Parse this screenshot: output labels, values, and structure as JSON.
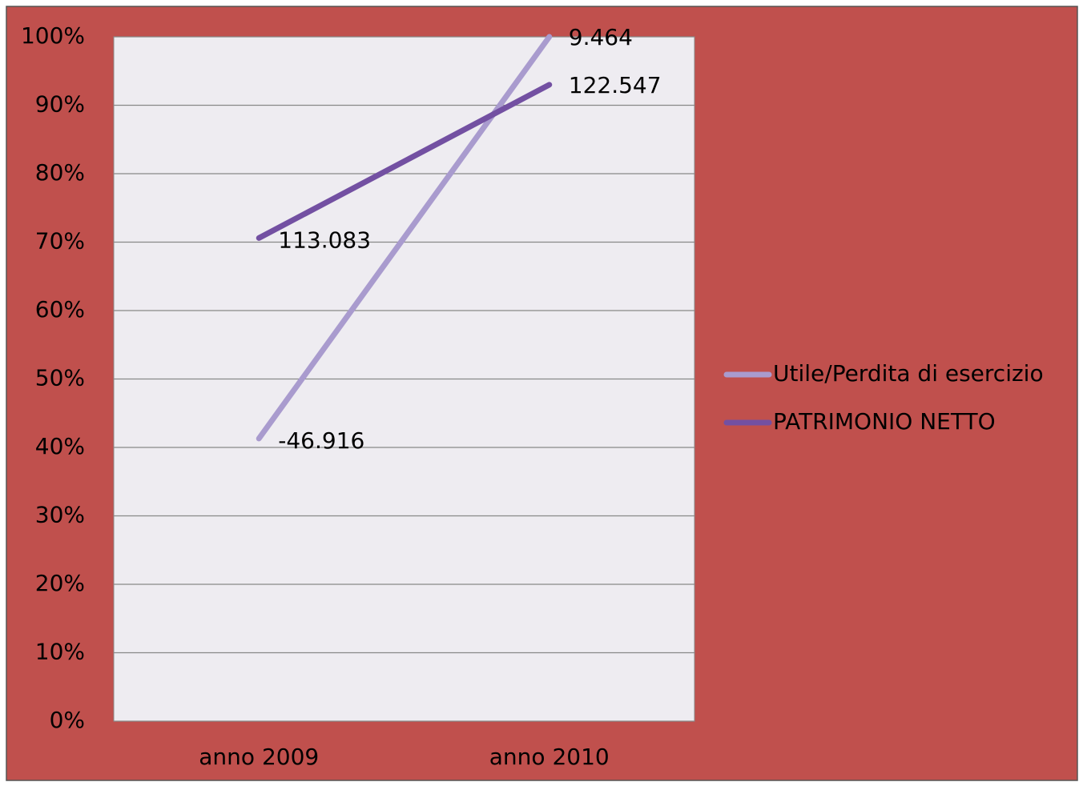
{
  "chart_data": {
    "type": "line",
    "categories": [
      "anno 2009",
      "anno 2010"
    ],
    "series": [
      {
        "name": "Utile/Perdita di esercizio",
        "color": "#a99bce",
        "values": [
          41.3,
          100
        ],
        "value_labels": [
          "-46.916",
          "9.464"
        ]
      },
      {
        "name": "PATRIMONIO NETTO",
        "color": "#7350a2",
        "values": [
          70.6,
          93
        ],
        "value_labels": [
          "113.083",
          "122.547"
        ]
      }
    ],
    "ylim": [
      0,
      100
    ],
    "yticks": [
      {
        "value": 0,
        "label": "0%"
      },
      {
        "value": 10,
        "label": "10%"
      },
      {
        "value": 20,
        "label": "20%"
      },
      {
        "value": 30,
        "label": "30%"
      },
      {
        "value": 40,
        "label": "40%"
      },
      {
        "value": 50,
        "label": "50%"
      },
      {
        "value": 60,
        "label": "60%"
      },
      {
        "value": 70,
        "label": "70%"
      },
      {
        "value": 80,
        "label": "80%"
      },
      {
        "value": 90,
        "label": "90%"
      },
      {
        "value": 100,
        "label": "100%"
      }
    ],
    "grid": true,
    "legend": "right"
  }
}
